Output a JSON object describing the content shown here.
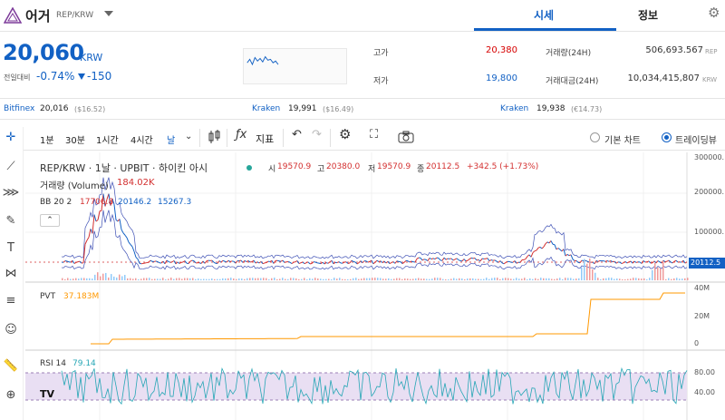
{
  "header": {
    "coin_name": "어거",
    "pair": "REP/KRW",
    "tabs": [
      "시세",
      "정보"
    ]
  },
  "price": {
    "value": "20,060",
    "unit": "KRW",
    "change_label": "전일대비",
    "change_rate": "-0.74%",
    "change_amount": "-150"
  },
  "stats": {
    "high_label": "고가",
    "high": "20,380",
    "low_label": "저가",
    "low": "19,800",
    "volume_label": "거래량(24H)",
    "volume": "506,693.567",
    "volume_unit": "REP",
    "amount_label": "거래대금(24H)",
    "amount": "10,034,415,807",
    "amount_unit": "KRW"
  },
  "exchanges": [
    {
      "name": "Bitfinex",
      "price": "20,016",
      "usd": "($16.52)"
    },
    {
      "name": "Kraken",
      "price": "19,991",
      "usd": "($16.49)"
    },
    {
      "name": "Kraken",
      "price": "19,938",
      "usd": "(€14.73)"
    }
  ],
  "toolbar": {
    "timeframes": [
      "1분",
      "30분",
      "1시간",
      "4시간",
      "날"
    ],
    "indicator_label": "지표",
    "radio_basic": "기본 차트",
    "radio_tv": "트레이딩뷰"
  },
  "chart": {
    "legend_title": "REP/KRW · 1날 · UPBIT · 하이킨 아시",
    "o_label": "시",
    "o": "19570.9",
    "h_label": "고",
    "h": "20380.0",
    "l_label": "저",
    "l": "19570.9",
    "c_label": "종",
    "c": "20112.5",
    "chg": "+342.5 (+1.73%)",
    "vol_label": "거래량 (Volume)",
    "vol_value": "184.02K",
    "bb_label": "BB 20 2",
    "bb_upper": "17706.8",
    "bb_mid": "20146.2",
    "bb_lower": "15267.3",
    "pvt_label": "PVT",
    "pvt_value": "37.183M",
    "rsi_label": "RSI 14",
    "rsi_value": "79.14",
    "price_axis": [
      "300000.",
      "200000.",
      "100000.",
      "20112.5"
    ],
    "pvt_axis": [
      "40M",
      "20M",
      "0"
    ],
    "rsi_axis": [
      "80.00",
      "40.00"
    ],
    "colors": {
      "up": "#d32f2f",
      "down": "#1261c4",
      "pvt": "#ff9800",
      "rsi": "#26a6b5",
      "bb": "#3f51b5"
    }
  }
}
